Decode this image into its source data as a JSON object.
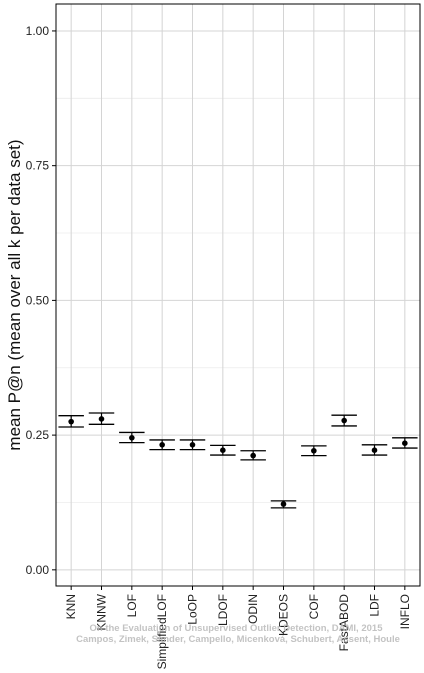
{
  "chart_data": {
    "type": "scatter",
    "ylabel": "mean P@n (mean over all k per data set)",
    "xlabel": "",
    "ylim": [
      -0.03,
      1.05
    ],
    "yticks": [
      "0.00",
      "0.25",
      "0.50",
      "0.75",
      "1.00"
    ],
    "grid": true,
    "categories": [
      "KNN",
      "KNNW",
      "LOF",
      "SimplifiedLOF",
      "LoOP",
      "LDOF",
      "ODIN",
      "KDEOS",
      "COF",
      "FastABOD",
      "LDF",
      "INFLO"
    ],
    "series": [
      {
        "means": [
          0.275,
          0.28,
          0.245,
          0.232,
          0.232,
          0.222,
          0.212,
          0.122,
          0.221,
          0.277,
          0.222,
          0.235
        ],
        "lower": [
          0.265,
          0.27,
          0.236,
          0.223,
          0.223,
          0.213,
          0.204,
          0.115,
          0.212,
          0.267,
          0.213,
          0.226
        ],
        "upper": [
          0.286,
          0.291,
          0.255,
          0.241,
          0.241,
          0.231,
          0.221,
          0.128,
          0.23,
          0.287,
          0.232,
          0.245
        ]
      }
    ],
    "annotations": [
      "On the Evaluation of Unsupervised Outlier Detection, DAMI, 2015",
      "Campos, Zimek, Sander, Campello, Micenková, Schubert, Assent, Houle"
    ]
  },
  "colors": {
    "background": "#ffffff",
    "grid_major": "#d4d4d4",
    "grid_minor": "#ececec",
    "axis": "#000000",
    "marker": "#000000"
  }
}
